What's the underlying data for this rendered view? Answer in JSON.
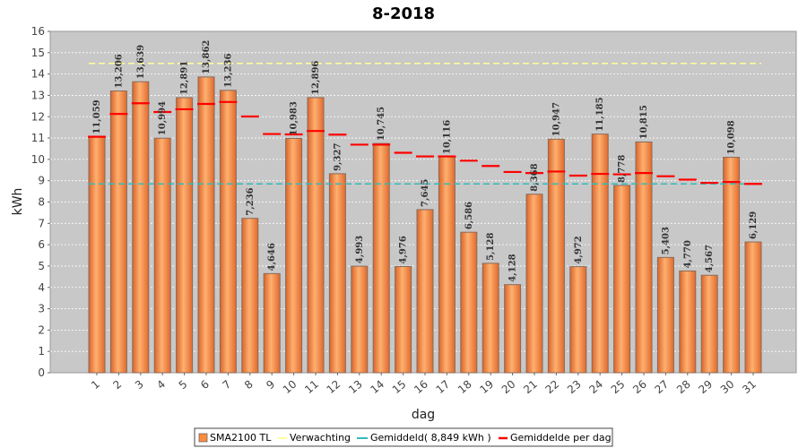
{
  "chart_data": {
    "type": "bar",
    "title": "8-2018",
    "xlabel": "dag",
    "ylabel": "kWh",
    "ylim": [
      0,
      16
    ],
    "yticks": [
      0,
      1,
      2,
      3,
      4,
      5,
      6,
      7,
      8,
      9,
      10,
      11,
      12,
      13,
      14,
      15,
      16
    ],
    "grid": true,
    "legend_position": "bottom",
    "categories": [
      "1",
      "2",
      "3",
      "4",
      "5",
      "6",
      "7",
      "8",
      "9",
      "10",
      "11",
      "12",
      "13",
      "14",
      "15",
      "16",
      "17",
      "18",
      "19",
      "20",
      "21",
      "22",
      "23",
      "24",
      "25",
      "26",
      "27",
      "28",
      "29",
      "30",
      "31"
    ],
    "series": [
      {
        "name": "SMA2100 TL",
        "kind": "bar",
        "color": "#ff8a3d",
        "values": [
          11.059,
          13.206,
          13.639,
          10.994,
          12.891,
          13.862,
          13.236,
          7.236,
          4.646,
          10.983,
          12.896,
          9.327,
          4.993,
          10.745,
          4.976,
          7.645,
          10.116,
          6.586,
          5.128,
          4.128,
          8.368,
          10.947,
          4.972,
          11.185,
          8.778,
          10.815,
          5.403,
          4.77,
          4.567,
          10.098,
          6.129
        ],
        "labels": [
          "11,059",
          "13,206",
          "13,639",
          "10,994",
          "12,891",
          "13,862",
          "13,236",
          "7,236",
          "4,646",
          "10,983",
          "12,896",
          "9,327",
          "4,993",
          "10,745",
          "4,976",
          "7,645",
          "10,116",
          "6,586",
          "5,128",
          "4,128",
          "8,368",
          "10,947",
          "4,972",
          "11,185",
          "8,778",
          "10,815",
          "5,403",
          "4,770",
          "4,567",
          "10,098",
          "6,129"
        ]
      },
      {
        "name": "Verwachting",
        "kind": "dashed-line",
        "color": "#ffff99",
        "value": 14.5
      },
      {
        "name": "Gemiddeld( 8,849 kWh )",
        "kind": "dashed-line",
        "color": "#33bbbb",
        "value": 8.849
      },
      {
        "name": "Gemiddelde per dag",
        "kind": "markers",
        "color": "#ff0000",
        "values": [
          11.06,
          12.13,
          12.63,
          12.22,
          12.35,
          12.6,
          12.69,
          12.01,
          11.19,
          11.17,
          11.33,
          11.16,
          10.69,
          10.69,
          10.31,
          10.14,
          10.14,
          9.94,
          9.69,
          9.41,
          9.36,
          9.43,
          9.24,
          9.32,
          9.3,
          9.36,
          9.21,
          9.05,
          8.9,
          8.94,
          8.85
        ]
      }
    ]
  }
}
